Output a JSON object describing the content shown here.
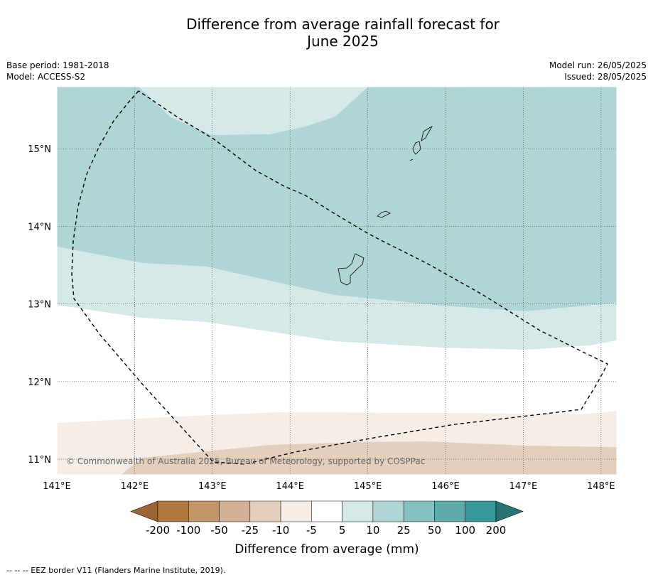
{
  "header": {
    "title_line1": "Difference from average rainfall forecast for",
    "title_line2": "June 2025",
    "base_period": "Base period: 1981-2018",
    "model": "Model: ACCESS-S2",
    "model_run": "Model run: 26/05/2025",
    "issued": "Issued: 28/05/2025"
  },
  "map": {
    "lon_range": [
      141.0,
      148.2
    ],
    "lat_range": [
      10.8,
      15.8
    ],
    "lon_ticks": [
      {
        "value": 141,
        "label": "141°E"
      },
      {
        "value": 142,
        "label": "142°E"
      },
      {
        "value": 143,
        "label": "143°E"
      },
      {
        "value": 144,
        "label": "144°E"
      },
      {
        "value": 145,
        "label": "145°E"
      },
      {
        "value": 146,
        "label": "146°E"
      },
      {
        "value": 147,
        "label": "147°E"
      },
      {
        "value": 148,
        "label": "148°E"
      }
    ],
    "lat_ticks": [
      {
        "value": 11,
        "label": "11°N"
      },
      {
        "value": 12,
        "label": "12°N"
      },
      {
        "value": 13,
        "label": "13°N"
      },
      {
        "value": 14,
        "label": "14°N"
      },
      {
        "value": 15,
        "label": "15°N"
      }
    ],
    "gridlines": "dotted",
    "copyright": "© Commonwealth of Australia 2025, Bureau of Meteorology, supported by COSPPac"
  },
  "colorbar": {
    "title": "Difference from average (mm)",
    "labels": [
      "-200",
      "-100",
      "-50",
      "-25",
      "-10",
      "-5",
      "5",
      "10",
      "25",
      "50",
      "100",
      "200"
    ],
    "colors": [
      "#9c6532",
      "#b07840",
      "#c29468",
      "#d4b295",
      "#e4cfbc",
      "#f5ede7",
      "#ffffff",
      "#d5e9e8",
      "#afd6d5",
      "#86c1c1",
      "#5dacab",
      "#369898",
      "#287474"
    ],
    "extend": "both"
  },
  "footnote": "--  --  -- EEZ border V11 (Flanders Marine Institute, 2019)."
}
